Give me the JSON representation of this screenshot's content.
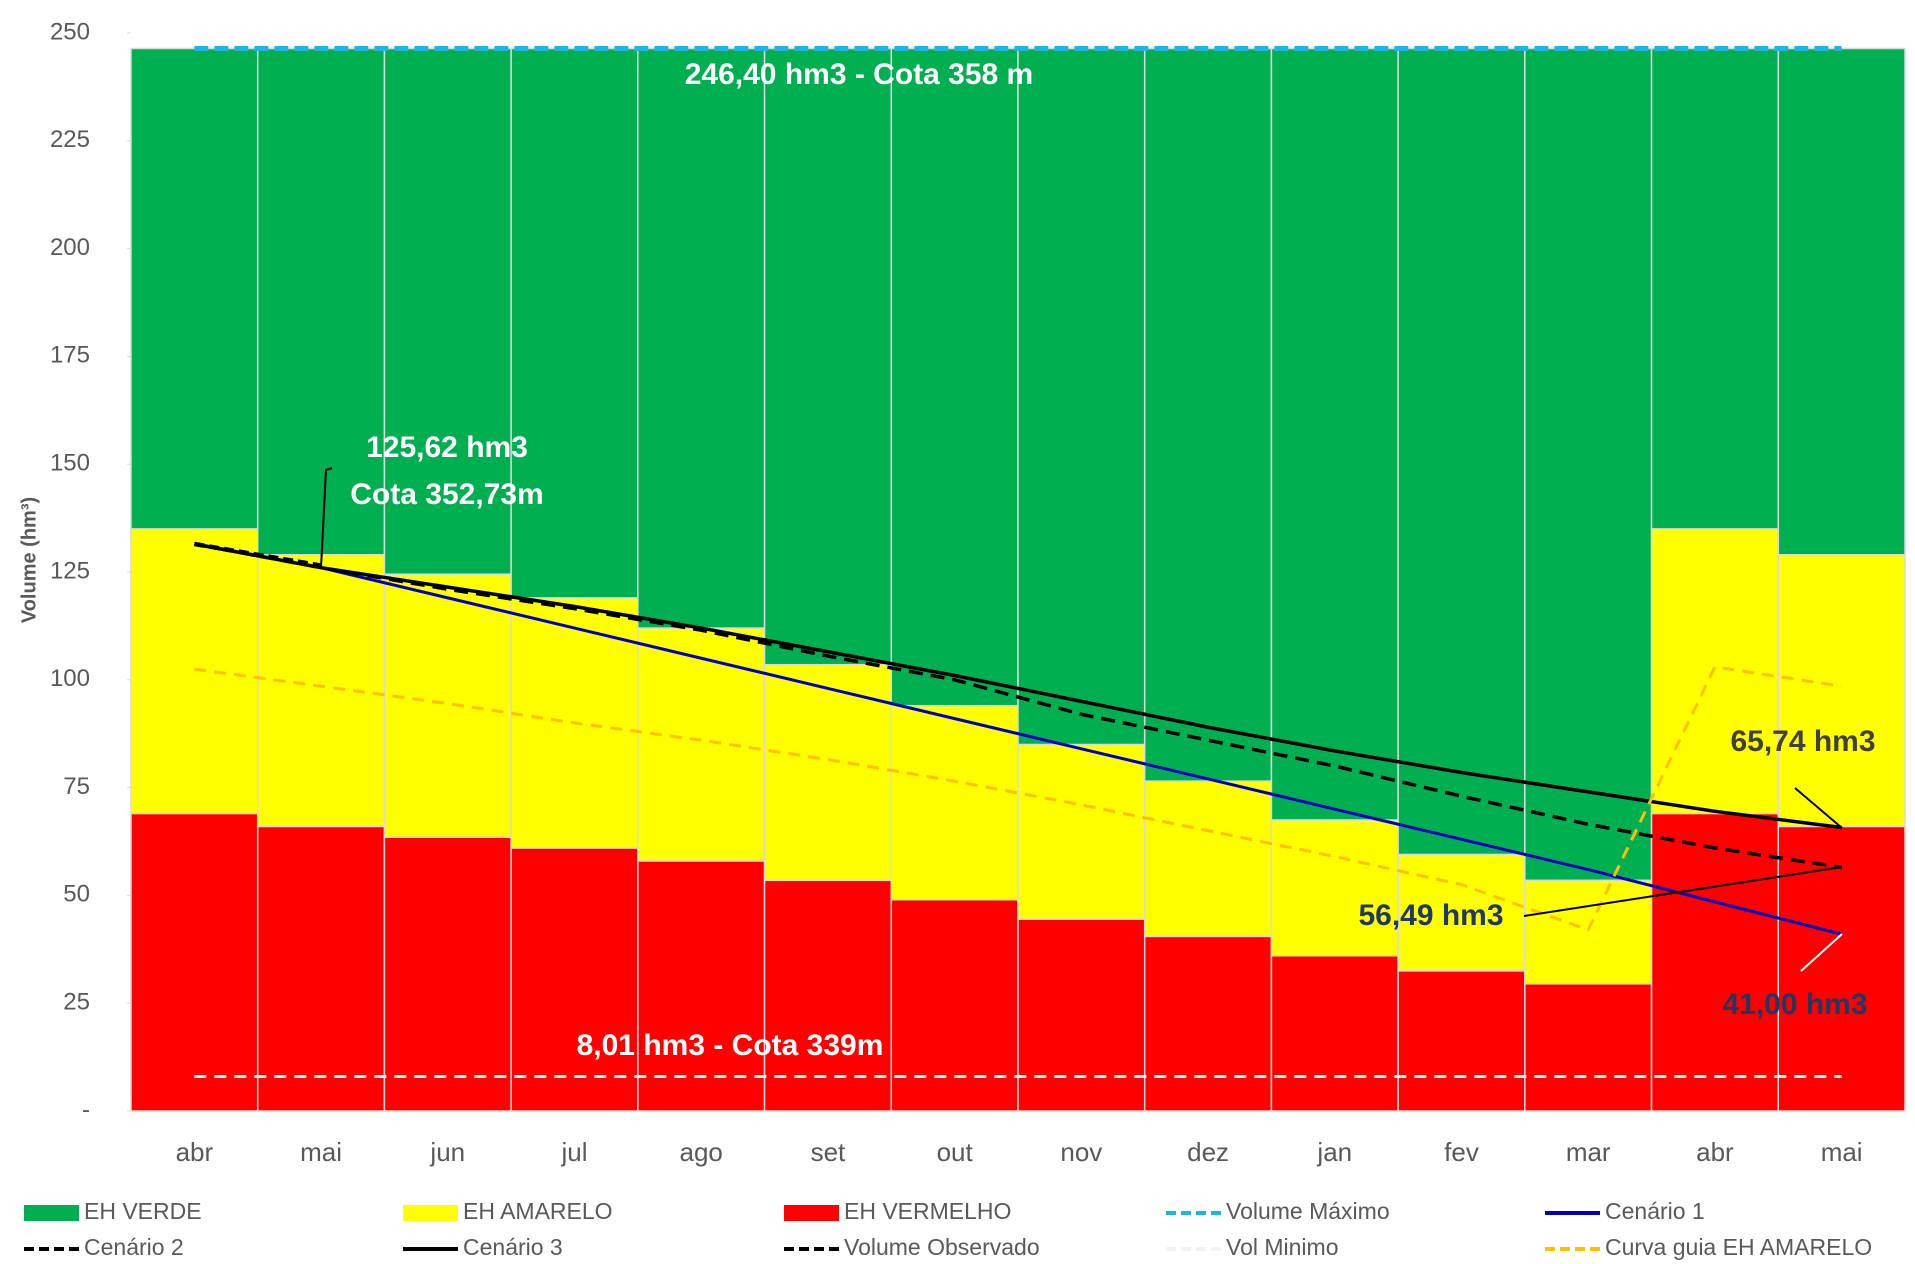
{
  "chart_data": {
    "type": "bar",
    "y_label": "Volume (hm³)",
    "categories": [
      "abr",
      "mai",
      "jun",
      "jul",
      "ago",
      "set",
      "out",
      "nov",
      "dez",
      "jan",
      "fev",
      "mar",
      "abr",
      "mai"
    ],
    "ylim": [
      0,
      250
    ],
    "yticks": [
      {
        "value": 0,
        "label": "-"
      },
      25,
      50,
      75,
      100,
      125,
      150,
      175,
      200,
      225,
      250
    ],
    "series": [
      {
        "name": "EH VERDE",
        "type": "bar",
        "color": "#00b050",
        "values": [
          111.4,
          117.4,
          121.9,
          127.4,
          134.4,
          142.9,
          152.4,
          161.4,
          169.9,
          178.9,
          186.9,
          192.9,
          111.4,
          117.4
        ]
      },
      {
        "name": "EH AMARELO",
        "type": "bar",
        "color": "#ffff00",
        "values": [
          66,
          63,
          61,
          58,
          54,
          50,
          45,
          40.5,
          36,
          31.5,
          27,
          24,
          66,
          63
        ]
      },
      {
        "name": "EH VERMELHO",
        "type": "bar",
        "color": "#ff0000",
        "values": [
          69,
          66,
          63.5,
          61,
          58,
          53.5,
          49,
          44.5,
          40.5,
          36,
          32.5,
          29.5,
          69,
          66
        ]
      },
      {
        "name": "Volume Máximo",
        "type": "line",
        "dash": "14 6",
        "color": "#1fb4e6",
        "values": [
          246.4,
          246.4,
          246.4,
          246.4,
          246.4,
          246.4,
          246.4,
          246.4,
          246.4,
          246.4,
          246.4,
          246.4,
          246.4,
          246.4
        ]
      },
      {
        "name": "Cenário 1",
        "type": "line",
        "color": "#0000c0",
        "values": [
          131.5,
          126,
          119,
          112,
          105,
          98,
          91,
          84,
          77,
          70,
          63,
          56,
          48.5,
          41
        ]
      },
      {
        "name": "Cenário 2",
        "type": "line",
        "dash": "14 8",
        "color": "#000000",
        "values": [
          131.5,
          126,
          121,
          116.5,
          111.5,
          105.5,
          100,
          92,
          86,
          80,
          73,
          66.5,
          61,
          56.49
        ]
      },
      {
        "name": "Cenário 3",
        "type": "line",
        "color": "#000000",
        "values": [
          131.5,
          126,
          121.5,
          117,
          112,
          106.5,
          101,
          95,
          89,
          83.5,
          78.5,
          74,
          69.5,
          65.74
        ]
      },
      {
        "name": "Volume Observado",
        "type": "line",
        "dash": "10 5",
        "color": "#000000",
        "values": [
          131.5,
          126.5,
          null,
          null,
          null,
          null,
          null,
          null,
          null,
          null,
          null,
          null,
          null,
          null
        ]
      },
      {
        "name": "Vol Minimo",
        "type": "line",
        "dash": "12 8",
        "color": "#f2f2f2",
        "values": [
          8.01,
          8.01,
          8.01,
          8.01,
          8.01,
          8.01,
          8.01,
          8.01,
          8.01,
          8.01,
          8.01,
          8.01,
          8.01,
          8.01
        ]
      },
      {
        "name": "Curva guia EH AMARELO",
        "type": "line",
        "dash": "12 8",
        "color": "#ffc000",
        "values": [
          102.5,
          98.5,
          94.5,
          90,
          86,
          81.5,
          76.5,
          71,
          65,
          59,
          52.5,
          42,
          103,
          98.5
        ]
      }
    ],
    "annotations": [
      "246,40 hm3 - Cota 358 m",
      "8,01 hm3 - Cota 339m",
      "125,62 hm3",
      "Cota 352,73m",
      "65,74 hm3",
      "56,49 hm3",
      "41,00 hm3"
    ]
  }
}
